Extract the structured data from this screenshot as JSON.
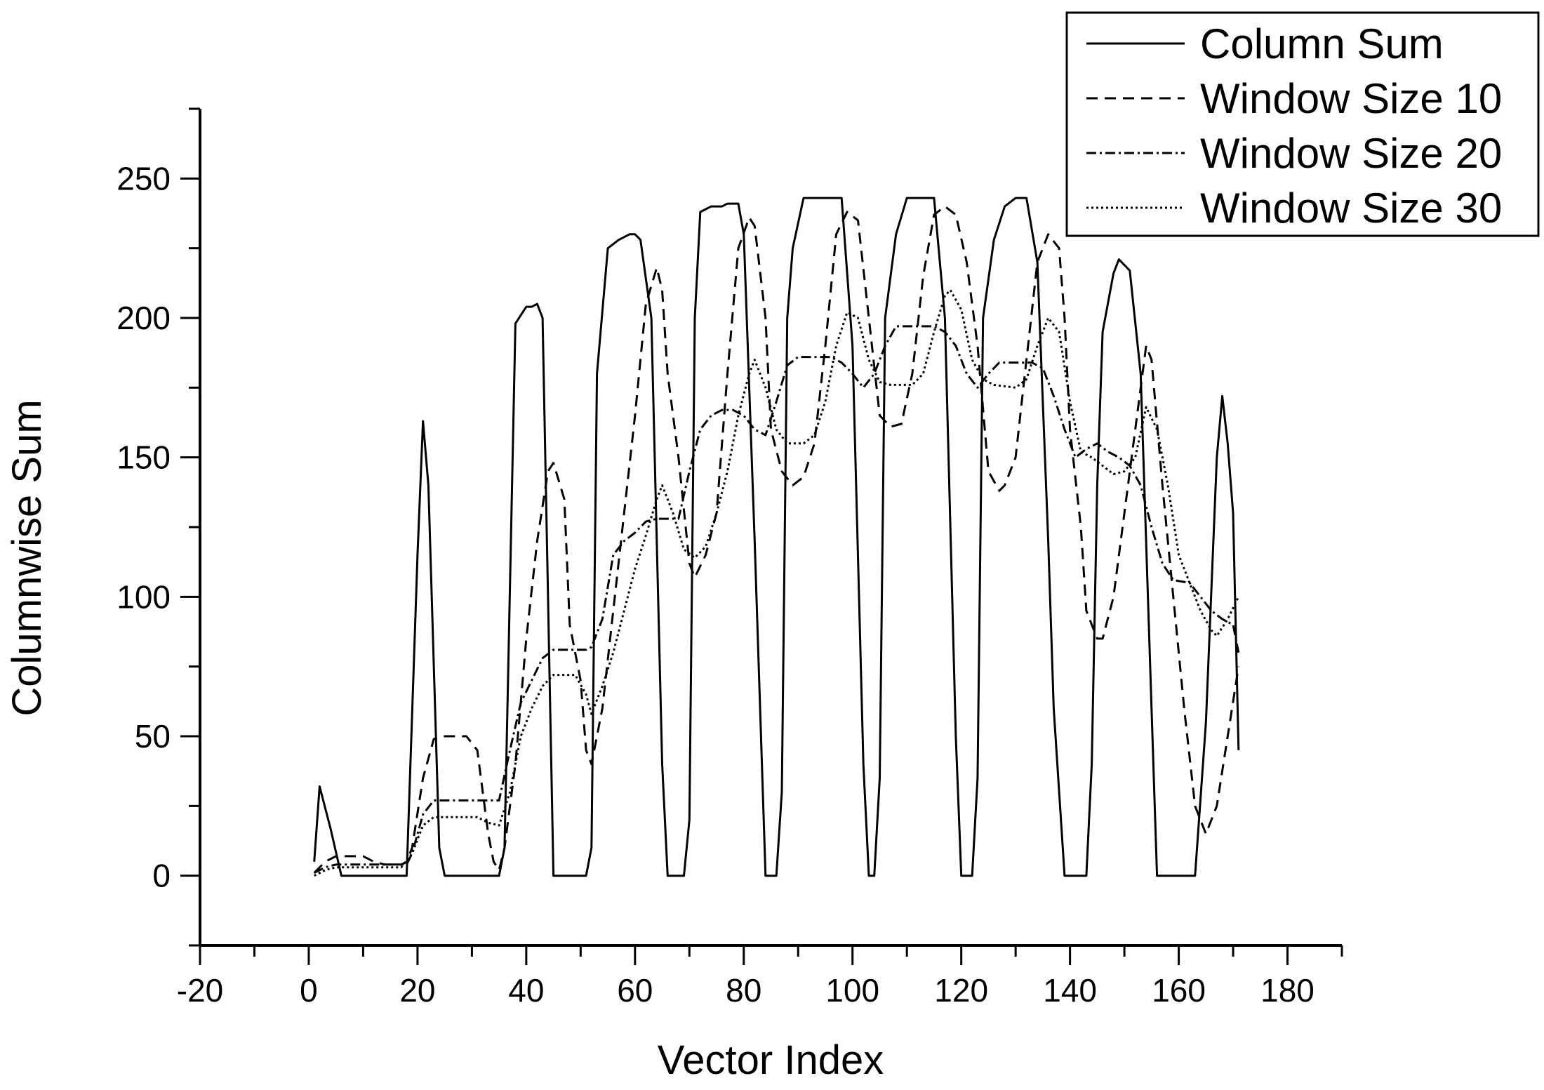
{
  "chart_data": {
    "type": "line",
    "title": "",
    "xlabel": "Vector Index",
    "ylabel": "Columnwise Sum",
    "xlim": [
      -20,
      190
    ],
    "ylim": [
      -25,
      275
    ],
    "xticks": [
      -20,
      0,
      20,
      40,
      60,
      80,
      100,
      120,
      140,
      160,
      180
    ],
    "yticks": [
      0,
      50,
      100,
      150,
      200,
      250
    ],
    "xtick_labels": [
      "-20",
      "0",
      "20",
      "40",
      "60",
      "80",
      "100",
      "120",
      "140",
      "160",
      "180"
    ],
    "ytick_labels": [
      "0",
      "50",
      "100",
      "150",
      "200",
      "250"
    ],
    "grid": false,
    "legend_position": "top-right",
    "colors": {
      "line": "#000000",
      "axis": "#000000",
      "background": "#ffffff"
    },
    "series": [
      {
        "name": "Column Sum",
        "style": "solid",
        "points": [
          [
            1,
            5
          ],
          [
            2,
            32
          ],
          [
            4,
            17
          ],
          [
            6,
            0
          ],
          [
            18,
            0
          ],
          [
            20,
            115
          ],
          [
            21,
            163
          ],
          [
            22,
            140
          ],
          [
            24,
            10
          ],
          [
            25,
            0
          ],
          [
            35,
            0
          ],
          [
            36,
            10
          ],
          [
            38,
            198
          ],
          [
            40,
            204
          ],
          [
            41,
            204
          ],
          [
            42,
            205
          ],
          [
            43,
            200
          ],
          [
            45,
            0
          ],
          [
            51,
            0
          ],
          [
            52,
            10
          ],
          [
            53,
            180
          ],
          [
            55,
            225
          ],
          [
            57,
            228
          ],
          [
            59,
            230
          ],
          [
            60,
            230
          ],
          [
            61,
            228
          ],
          [
            63,
            200
          ],
          [
            65,
            40
          ],
          [
            66,
            0
          ],
          [
            69,
            0
          ],
          [
            70,
            20
          ],
          [
            71,
            200
          ],
          [
            72,
            238
          ],
          [
            74,
            240
          ],
          [
            76,
            240
          ],
          [
            77,
            241
          ],
          [
            79,
            241
          ],
          [
            80,
            230
          ],
          [
            82,
            120
          ],
          [
            84,
            0
          ],
          [
            86,
            0
          ],
          [
            87,
            30
          ],
          [
            88,
            200
          ],
          [
            89,
            225
          ],
          [
            91,
            243
          ],
          [
            93,
            243
          ],
          [
            98,
            243
          ],
          [
            100,
            190
          ],
          [
            102,
            40
          ],
          [
            103,
            0
          ],
          [
            104,
            0
          ],
          [
            105,
            35
          ],
          [
            106,
            200
          ],
          [
            108,
            230
          ],
          [
            110,
            243
          ],
          [
            115,
            243
          ],
          [
            117,
            200
          ],
          [
            119,
            50
          ],
          [
            120,
            0
          ],
          [
            122,
            0
          ],
          [
            123,
            35
          ],
          [
            124,
            200
          ],
          [
            126,
            228
          ],
          [
            128,
            240
          ],
          [
            130,
            243
          ],
          [
            132,
            243
          ],
          [
            134,
            220
          ],
          [
            136,
            120
          ],
          [
            137,
            60
          ],
          [
            139,
            0
          ],
          [
            143,
            0
          ],
          [
            144,
            40
          ],
          [
            145,
            140
          ],
          [
            146,
            195
          ],
          [
            148,
            216
          ],
          [
            149,
            221
          ],
          [
            151,
            217
          ],
          [
            153,
            180
          ],
          [
            155,
            60
          ],
          [
            156,
            0
          ],
          [
            163,
            0
          ],
          [
            165,
            55
          ],
          [
            167,
            150
          ],
          [
            168,
            172
          ],
          [
            169,
            155
          ],
          [
            170,
            130
          ],
          [
            171,
            45
          ]
        ]
      },
      {
        "name": "Window Size 10",
        "style": "dashed",
        "points": [
          [
            1,
            1
          ],
          [
            3,
            5
          ],
          [
            5,
            7
          ],
          [
            8,
            7
          ],
          [
            10,
            7
          ],
          [
            12,
            5
          ],
          [
            14,
            4
          ],
          [
            17,
            4
          ],
          [
            18,
            5
          ],
          [
            19,
            10
          ],
          [
            21,
            35
          ],
          [
            23,
            49
          ],
          [
            25,
            50
          ],
          [
            27,
            50
          ],
          [
            29,
            50
          ],
          [
            31,
            45
          ],
          [
            33,
            15
          ],
          [
            34,
            5
          ],
          [
            35,
            2
          ],
          [
            36,
            10
          ],
          [
            38,
            40
          ],
          [
            40,
            85
          ],
          [
            42,
            120
          ],
          [
            44,
            145
          ],
          [
            45,
            148
          ],
          [
            47,
            135
          ],
          [
            48,
            90
          ],
          [
            50,
            70
          ],
          [
            51,
            45
          ],
          [
            52,
            40
          ],
          [
            54,
            60
          ],
          [
            56,
            95
          ],
          [
            58,
            130
          ],
          [
            60,
            165
          ],
          [
            62,
            205
          ],
          [
            64,
            218
          ],
          [
            65,
            210
          ],
          [
            66,
            180
          ],
          [
            68,
            150
          ],
          [
            70,
            112
          ],
          [
            71,
            107
          ],
          [
            73,
            115
          ],
          [
            75,
            130
          ],
          [
            77,
            180
          ],
          [
            79,
            225
          ],
          [
            81,
            236
          ],
          [
            82,
            233
          ],
          [
            84,
            200
          ],
          [
            85,
            160
          ],
          [
            87,
            145
          ],
          [
            89,
            140
          ],
          [
            91,
            143
          ],
          [
            93,
            155
          ],
          [
            95,
            190
          ],
          [
            97,
            230
          ],
          [
            99,
            238
          ],
          [
            101,
            235
          ],
          [
            103,
            200
          ],
          [
            105,
            165
          ],
          [
            107,
            161
          ],
          [
            109,
            162
          ],
          [
            111,
            180
          ],
          [
            113,
            215
          ],
          [
            115,
            237
          ],
          [
            117,
            240
          ],
          [
            119,
            237
          ],
          [
            121,
            220
          ],
          [
            123,
            190
          ],
          [
            125,
            145
          ],
          [
            127,
            138
          ],
          [
            128,
            140
          ],
          [
            130,
            150
          ],
          [
            132,
            185
          ],
          [
            134,
            220
          ],
          [
            136,
            230
          ],
          [
            138,
            225
          ],
          [
            139,
            200
          ],
          [
            140,
            160
          ],
          [
            142,
            125
          ],
          [
            143,
            95
          ],
          [
            145,
            85
          ],
          [
            146,
            85
          ],
          [
            148,
            100
          ],
          [
            150,
            130
          ],
          [
            152,
            160
          ],
          [
            154,
            190
          ],
          [
            155,
            185
          ],
          [
            157,
            140
          ],
          [
            159,
            100
          ],
          [
            161,
            60
          ],
          [
            163,
            25
          ],
          [
            165,
            15
          ],
          [
            167,
            25
          ],
          [
            169,
            50
          ],
          [
            171,
            75
          ]
        ]
      },
      {
        "name": "Window Size 20",
        "style": "dashdot",
        "points": [
          [
            1,
            1
          ],
          [
            3,
            3
          ],
          [
            5,
            4
          ],
          [
            18,
            4
          ],
          [
            19,
            8
          ],
          [
            21,
            22
          ],
          [
            23,
            27
          ],
          [
            33,
            27
          ],
          [
            35,
            27
          ],
          [
            37,
            45
          ],
          [
            39,
            62
          ],
          [
            41,
            70
          ],
          [
            43,
            78
          ],
          [
            45,
            81
          ],
          [
            51,
            81
          ],
          [
            52,
            82
          ],
          [
            54,
            92
          ],
          [
            56,
            115
          ],
          [
            58,
            120
          ],
          [
            60,
            123
          ],
          [
            62,
            127
          ],
          [
            64,
            128
          ],
          [
            68,
            128
          ],
          [
            70,
            145
          ],
          [
            72,
            160
          ],
          [
            74,
            165
          ],
          [
            76,
            167
          ],
          [
            78,
            167
          ],
          [
            80,
            165
          ],
          [
            82,
            160
          ],
          [
            84,
            158
          ],
          [
            86,
            170
          ],
          [
            88,
            183
          ],
          [
            90,
            186
          ],
          [
            96,
            186
          ],
          [
            98,
            184
          ],
          [
            100,
            180
          ],
          [
            102,
            175
          ],
          [
            104,
            180
          ],
          [
            106,
            190
          ],
          [
            108,
            197
          ],
          [
            115,
            197
          ],
          [
            117,
            195
          ],
          [
            119,
            190
          ],
          [
            121,
            180
          ],
          [
            123,
            175
          ],
          [
            125,
            180
          ],
          [
            127,
            184
          ],
          [
            133,
            184
          ],
          [
            135,
            182
          ],
          [
            137,
            172
          ],
          [
            139,
            160
          ],
          [
            141,
            150
          ],
          [
            143,
            153
          ],
          [
            145,
            155
          ],
          [
            147,
            152
          ],
          [
            149,
            150
          ],
          [
            151,
            147
          ],
          [
            153,
            140
          ],
          [
            155,
            125
          ],
          [
            157,
            112
          ],
          [
            159,
            106
          ],
          [
            162,
            105
          ],
          [
            164,
            100
          ],
          [
            166,
            95
          ],
          [
            168,
            92
          ],
          [
            170,
            90
          ],
          [
            171,
            80
          ]
        ]
      },
      {
        "name": "Window Size 30",
        "style": "dotted",
        "points": [
          [
            1,
            0
          ],
          [
            3,
            2
          ],
          [
            5,
            3
          ],
          [
            17,
            3
          ],
          [
            19,
            8
          ],
          [
            21,
            18
          ],
          [
            23,
            21
          ],
          [
            31,
            21
          ],
          [
            33,
            19
          ],
          [
            35,
            18
          ],
          [
            37,
            30
          ],
          [
            39,
            50
          ],
          [
            41,
            60
          ],
          [
            43,
            68
          ],
          [
            45,
            72
          ],
          [
            49,
            72
          ],
          [
            51,
            65
          ],
          [
            52,
            58
          ],
          [
            54,
            68
          ],
          [
            56,
            80
          ],
          [
            58,
            95
          ],
          [
            60,
            110
          ],
          [
            62,
            122
          ],
          [
            64,
            135
          ],
          [
            65,
            140
          ],
          [
            67,
            130
          ],
          [
            69,
            117
          ],
          [
            71,
            114
          ],
          [
            73,
            118
          ],
          [
            75,
            130
          ],
          [
            77,
            145
          ],
          [
            79,
            165
          ],
          [
            81,
            180
          ],
          [
            82,
            185
          ],
          [
            84,
            175
          ],
          [
            86,
            160
          ],
          [
            88,
            155
          ],
          [
            91,
            155
          ],
          [
            93,
            158
          ],
          [
            95,
            170
          ],
          [
            97,
            190
          ],
          [
            99,
            202
          ],
          [
            101,
            200
          ],
          [
            103,
            185
          ],
          [
            105,
            177
          ],
          [
            107,
            176
          ],
          [
            111,
            176
          ],
          [
            113,
            180
          ],
          [
            115,
            195
          ],
          [
            117,
            208
          ],
          [
            118,
            210
          ],
          [
            120,
            203
          ],
          [
            122,
            185
          ],
          [
            124,
            178
          ],
          [
            126,
            176
          ],
          [
            130,
            175
          ],
          [
            132,
            178
          ],
          [
            134,
            190
          ],
          [
            136,
            200
          ],
          [
            138,
            195
          ],
          [
            140,
            170
          ],
          [
            142,
            152
          ],
          [
            144,
            150
          ],
          [
            146,
            147
          ],
          [
            148,
            144
          ],
          [
            150,
            145
          ],
          [
            152,
            150
          ],
          [
            154,
            168
          ],
          [
            156,
            160
          ],
          [
            158,
            140
          ],
          [
            160,
            115
          ],
          [
            162,
            105
          ],
          [
            164,
            95
          ],
          [
            166,
            88
          ],
          [
            167,
            86
          ],
          [
            169,
            92
          ],
          [
            171,
            100
          ]
        ]
      }
    ]
  }
}
